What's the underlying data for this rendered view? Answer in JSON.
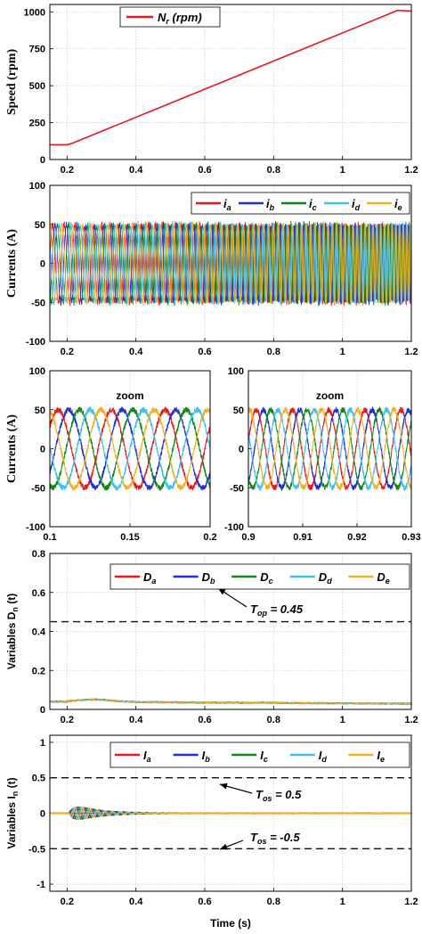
{
  "colors": {
    "red": "#e8191e",
    "blue": "#1f2fd4",
    "green": "#12861a",
    "cyan": "#3fbff0",
    "orange": "#f0b020",
    "grid": "#d0d0d0",
    "dash": "#111111"
  },
  "chart_data": [
    {
      "type": "line",
      "id": "speed",
      "ylabel": "Speed (rpm)",
      "xlim": [
        0.15,
        1.2
      ],
      "ylim": [
        0,
        1050
      ],
      "xticks": [
        0.2,
        0.4,
        0.6,
        0.8,
        1,
        1.2
      ],
      "xtick_labels": [
        "0.2",
        "0.4",
        "0.6",
        "0.8",
        "1",
        "1.2"
      ],
      "yticks": [
        0,
        250,
        500,
        750,
        1000
      ],
      "ytick_labels": [
        "0",
        "250",
        "500",
        "750",
        "1000"
      ],
      "grid": true,
      "legend_position": "top",
      "series": [
        {
          "name": "Nr (rpm)",
          "legend_main": "N",
          "legend_sub": "r",
          "legend_tail": " (rpm)",
          "color": "#e8191e",
          "x": [
            0.15,
            0.2,
            0.215,
            1.15,
            1.16,
            1.2
          ],
          "y": [
            100,
            100,
            110,
            1000,
            1010,
            1005
          ]
        }
      ]
    },
    {
      "type": "line",
      "id": "currents-full",
      "ylabel": "Currents (A)",
      "xlim": [
        0.15,
        1.2
      ],
      "ylim": [
        -100,
        100
      ],
      "xticks": [
        0.2,
        0.4,
        0.6,
        0.8,
        1,
        1.2
      ],
      "xtick_labels": [
        "0.2",
        "0.4",
        "0.6",
        "0.8",
        "1",
        "1.2"
      ],
      "yticks": [
        -100,
        -50,
        0,
        50,
        100
      ],
      "ytick_labels": [
        "-100",
        "-50",
        "0",
        "50",
        "100"
      ],
      "grid": true,
      "legend_position": "top-right",
      "amplitude": 50,
      "frequency_hz_at_start": 5,
      "frequency_hz_at_end": 50,
      "series": [
        {
          "name": "ia",
          "legend_main": "i",
          "legend_sub": "a",
          "color": "#e8191e"
        },
        {
          "name": "ib",
          "legend_main": "i",
          "legend_sub": "b",
          "color": "#1f2fd4"
        },
        {
          "name": "ic",
          "legend_main": "i",
          "legend_sub": "c",
          "color": "#12861a"
        },
        {
          "name": "id",
          "legend_main": "i",
          "legend_sub": "d",
          "color": "#3fbff0"
        },
        {
          "name": "ie",
          "legend_main": "i",
          "legend_sub": "e",
          "color": "#f0b020"
        }
      ]
    },
    {
      "type": "line",
      "id": "currents-zoom-left",
      "ylabel": "Currents (A)",
      "annotation": "zoom",
      "xlim": [
        0.1,
        0.2
      ],
      "ylim": [
        -100,
        100
      ],
      "xticks": [
        0.1,
        0.15,
        0.2
      ],
      "xtick_labels": [
        "0.1",
        "0.15",
        "0.2"
      ],
      "yticks": [
        -100,
        -50,
        0,
        50,
        100
      ],
      "ytick_labels": [
        "-100",
        "-50",
        "0",
        "50",
        "100"
      ],
      "grid": true,
      "amplitude": 50,
      "frequency_hz": 30,
      "series_colors": [
        "#e8191e",
        "#1f2fd4",
        "#12861a",
        "#3fbff0",
        "#f0b020"
      ]
    },
    {
      "type": "line",
      "id": "currents-zoom-right",
      "annotation": "zoom",
      "xlim": [
        0.9,
        0.93
      ],
      "ylim": [
        -100,
        100
      ],
      "xticks": [
        0.9,
        0.91,
        0.92,
        0.93
      ],
      "xtick_labels": [
        "0.9",
        "0.91",
        "0.92",
        "0.93"
      ],
      "yticks": [
        -100,
        -50,
        0,
        50,
        100
      ],
      "ytick_labels": [
        "-100",
        "-50",
        "0",
        "50",
        "100"
      ],
      "grid": true,
      "amplitude": 50,
      "frequency_hz": 150,
      "series_colors": [
        "#e8191e",
        "#1f2fd4",
        "#12861a",
        "#3fbff0",
        "#f0b020"
      ]
    },
    {
      "type": "line",
      "id": "variables-D",
      "ylabel": "Variables D",
      "ylabel_sub": "n",
      "ylabel_tail": " (t)",
      "xlim": [
        0.15,
        1.2
      ],
      "ylim": [
        0,
        0.8
      ],
      "xticks": [
        0.2,
        0.4,
        0.6,
        0.8,
        1,
        1.2
      ],
      "xtick_labels": [
        "0.2",
        "0.4",
        "0.6",
        "0.8",
        "1",
        "1.2"
      ],
      "yticks": [
        0,
        0.2,
        0.4,
        0.6,
        0.8
      ],
      "ytick_labels": [
        "0",
        "0.2",
        "0.4",
        "0.6",
        "0.8"
      ],
      "grid": true,
      "legend_position": "top",
      "threshold": 0.45,
      "threshold_label_main": "T",
      "threshold_label_sub": "op",
      "threshold_label_tail": " = 0.45",
      "baseline": 0.04,
      "series": [
        {
          "name": "Da",
          "legend_main": "D",
          "legend_sub": "a",
          "color": "#e8191e"
        },
        {
          "name": "Db",
          "legend_main": "D",
          "legend_sub": "b",
          "color": "#1f2fd4"
        },
        {
          "name": "Dc",
          "legend_main": "D",
          "legend_sub": "c",
          "color": "#12861a"
        },
        {
          "name": "Dd",
          "legend_main": "D",
          "legend_sub": "d",
          "color": "#3fbff0"
        },
        {
          "name": "De",
          "legend_main": "D",
          "legend_sub": "e",
          "color": "#f0b020"
        }
      ]
    },
    {
      "type": "line",
      "id": "variables-I",
      "ylabel": "Variables I",
      "ylabel_sub": "n",
      "ylabel_tail": " (t)",
      "xlabel": "Time (s)",
      "xlim": [
        0.15,
        1.2
      ],
      "ylim": [
        -1.1,
        1.1
      ],
      "xticks": [
        0.2,
        0.4,
        0.6,
        0.8,
        1,
        1.2
      ],
      "xtick_labels": [
        "0.2",
        "0.4",
        "0.6",
        "0.8",
        "1",
        "1.2"
      ],
      "yticks": [
        -1,
        -0.5,
        0,
        0.5,
        1
      ],
      "ytick_labels": [
        "-1",
        "-0.5",
        "0",
        "0.5",
        "1"
      ],
      "grid": true,
      "legend_position": "top",
      "thresholds": [
        0.5,
        -0.5
      ],
      "threshold_labels": [
        {
          "main": "T",
          "sub": "os",
          "tail": " = 0.5"
        },
        {
          "main": "T",
          "sub": "os",
          "tail": " = -0.5"
        }
      ],
      "transient_peak": 0.15,
      "series": [
        {
          "name": "Ia",
          "legend_main": "I",
          "legend_sub": "a",
          "color": "#e8191e"
        },
        {
          "name": "Ib",
          "legend_main": "I",
          "legend_sub": "b",
          "color": "#1f2fd4"
        },
        {
          "name": "Ic",
          "legend_main": "I",
          "legend_sub": "c",
          "color": "#12861a"
        },
        {
          "name": "Id",
          "legend_main": "I",
          "legend_sub": "d",
          "color": "#3fbff0"
        },
        {
          "name": "Ie",
          "legend_main": "I",
          "legend_sub": "e",
          "color": "#f0b020"
        }
      ]
    }
  ]
}
